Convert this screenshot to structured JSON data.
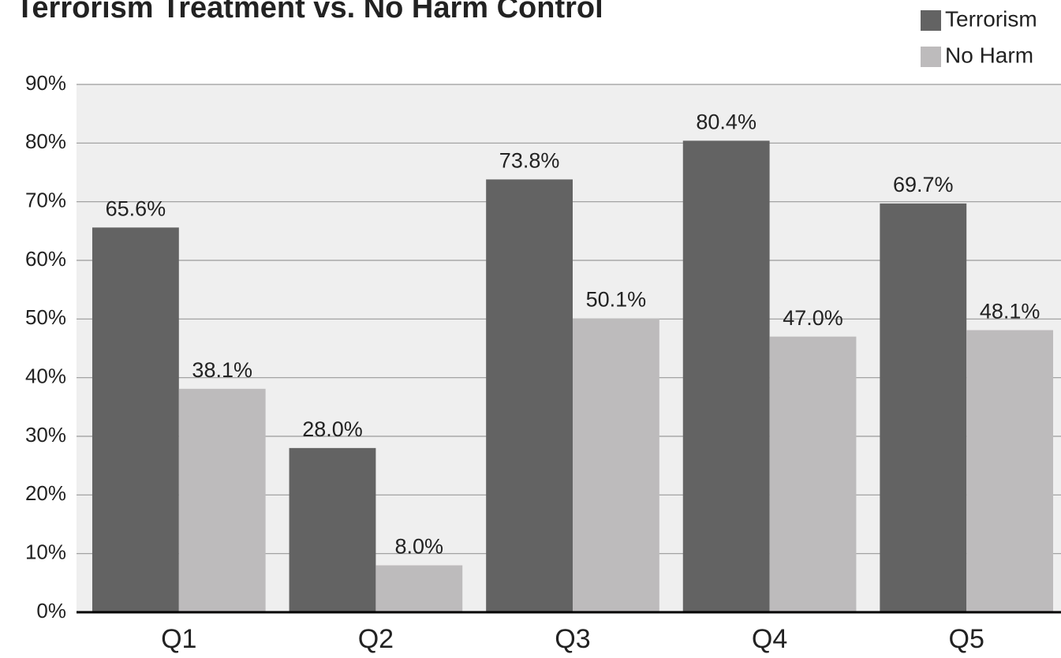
{
  "chart_data": {
    "type": "bar",
    "title": "Terrorism Treatment vs. No Harm Control",
    "categories": [
      "Q1",
      "Q2",
      "Q3",
      "Q4",
      "Q5"
    ],
    "series": [
      {
        "name": "Terrorism",
        "color": "#636363",
        "values": [
          65.6,
          28.0,
          73.8,
          80.4,
          69.7
        ],
        "value_labels": [
          "65.6%",
          "28.0%",
          "73.8%",
          "80.4%",
          "69.7%"
        ]
      },
      {
        "name": "No Harm",
        "color": "#bdbbbc",
        "values": [
          38.1,
          8.0,
          50.1,
          47.0,
          48.1
        ],
        "value_labels": [
          "38.1%",
          "8.0%",
          "50.1%",
          "47.0%",
          "48.1%"
        ]
      }
    ],
    "ylim": [
      0,
      90
    ],
    "yticks": [
      {
        "value": 0,
        "label": "0%"
      },
      {
        "value": 10,
        "label": "10%"
      },
      {
        "value": 20,
        "label": "20%"
      },
      {
        "value": 30,
        "label": "30%"
      },
      {
        "value": 40,
        "label": "40%"
      },
      {
        "value": 50,
        "label": "50%"
      },
      {
        "value": 60,
        "label": "60%"
      },
      {
        "value": 70,
        "label": "70%"
      },
      {
        "value": 80,
        "label": "80%"
      },
      {
        "value": 90,
        "label": "90%"
      }
    ],
    "grid": true,
    "legend": "top-right"
  }
}
